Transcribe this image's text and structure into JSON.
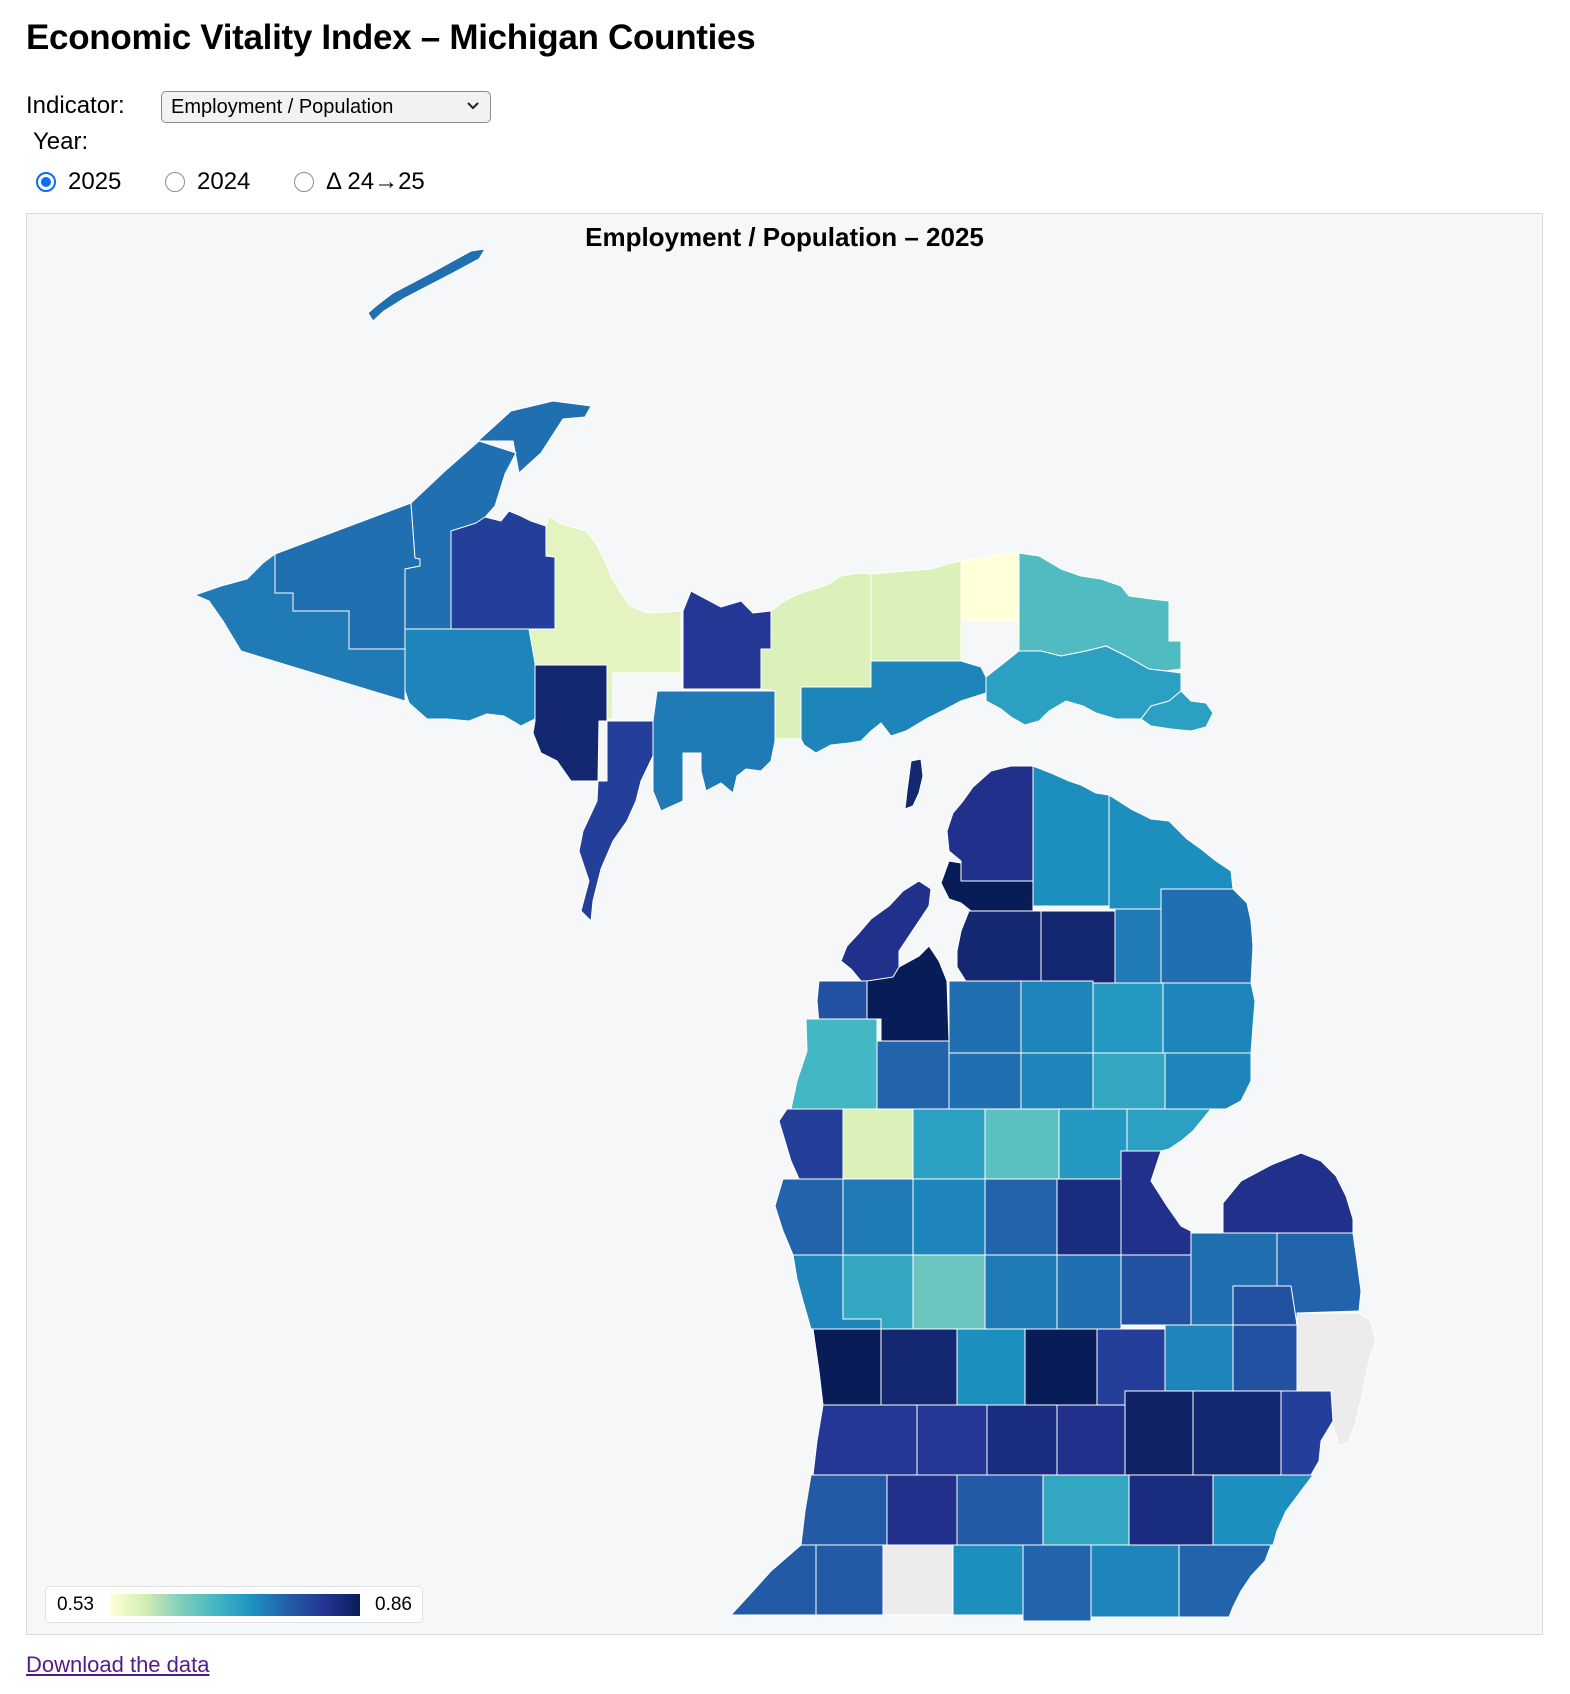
{
  "page": {
    "title": "Economic Vitality Index – Michigan Counties",
    "download_label": "Download the data"
  },
  "controls": {
    "indicator_label": "Indicator:",
    "indicator_selected": "Employment / Population",
    "year_label": "Year:",
    "year_options": [
      {
        "label": "2025",
        "checked": true
      },
      {
        "label": "2024",
        "checked": false
      },
      {
        "label": "Δ 24→25",
        "checked": false
      }
    ]
  },
  "chart_data": {
    "type": "choropleth",
    "title": "Employment / Population – 2025",
    "legend": {
      "min_label": "0.53",
      "max_label": "0.86",
      "min": 0.53,
      "max": 0.86,
      "placement": "bottom-left"
    },
    "color_scale": [
      "#ffffd9",
      "#d3eeb3",
      "#7fcdbb",
      "#41b6c4",
      "#1d91c0",
      "#225ea8",
      "#253494",
      "#081d58"
    ],
    "no_data_color": "#ececec",
    "county_values": {
      "isle_royale": 0.75,
      "keweenaw": 0.75,
      "ontonagon": 0.75,
      "gogebic": 0.74,
      "houghton": 0.75,
      "baraga": 0.8,
      "marquette": 0.56,
      "iron": 0.73,
      "dickinson": 0.84,
      "menominee": 0.8,
      "alger": 0.81,
      "delta": 0.74,
      "schoolcraft": 0.57,
      "luce": 0.57,
      "mackinac_west": 0.73,
      "chippewa_north": 0.53,
      "chippewa_east": 0.66,
      "mackinac_east": 0.7,
      "drummond": 0.7,
      "beaver_island": 0.84,
      "emmet": 0.82,
      "charlevoix": 0.86,
      "cheboygan": 0.72,
      "presque_isle": 0.72,
      "leelanau": 0.82,
      "antrim": 0.84,
      "otsego": 0.84,
      "montmorency": 0.74,
      "alpena": 0.75,
      "benzie": 0.78,
      "grand_traverse": 0.86,
      "kalkaska": 0.75,
      "crawford": 0.73,
      "oscoda": 0.71,
      "alcona": 0.73,
      "manistee": 0.67,
      "wexford": 0.76,
      "missaukee": 0.75,
      "roscommon": 0.73,
      "ogemaw": 0.69,
      "iosco": 0.73,
      "mason": 0.8,
      "lake": 0.57,
      "osceola": 0.7,
      "clare": 0.65,
      "gladwin": 0.71,
      "arenac": 0.74,
      "oceana": 0.76,
      "newaygo": 0.74,
      "mecosta": 0.73,
      "isabella": 0.76,
      "midland": 0.83,
      "bay": 0.82,
      "huron": 0.82,
      "tuscola": 0.75,
      "sanilac": 0.76,
      "muskegon": 0.73,
      "montcalm": 0.69,
      "gratiot": 0.64,
      "saginaw": 0.74,
      "lapeer": 0.78,
      "st_clair_north": 0.76,
      "ottawa": 0.86,
      "kent": 0.84,
      "ionia": 0.72,
      "clinton": 0.86,
      "shiawassee": 0.8,
      "genesee": 0.73,
      "lapeer_s": 0.78,
      "st_clair": 0.0,
      "allegan": 0.81,
      "barry": 0.81,
      "eaton": 0.83,
      "ingham": 0.82,
      "livingston": 0.85,
      "oakland": 0.84,
      "macomb": 0.8,
      "van_buren": 0.77,
      "kalamazoo": 0.82,
      "calhoun": 0.77,
      "jackson": 0.69,
      "washtenaw": 0.83,
      "wayne": 0.72,
      "berrien": 0.77,
      "cass": 0.77,
      "st_joseph": 0.0,
      "branch": 0.72,
      "hillsdale": 0.76,
      "lenawee": 0.73,
      "monroe": 0.76
    }
  }
}
